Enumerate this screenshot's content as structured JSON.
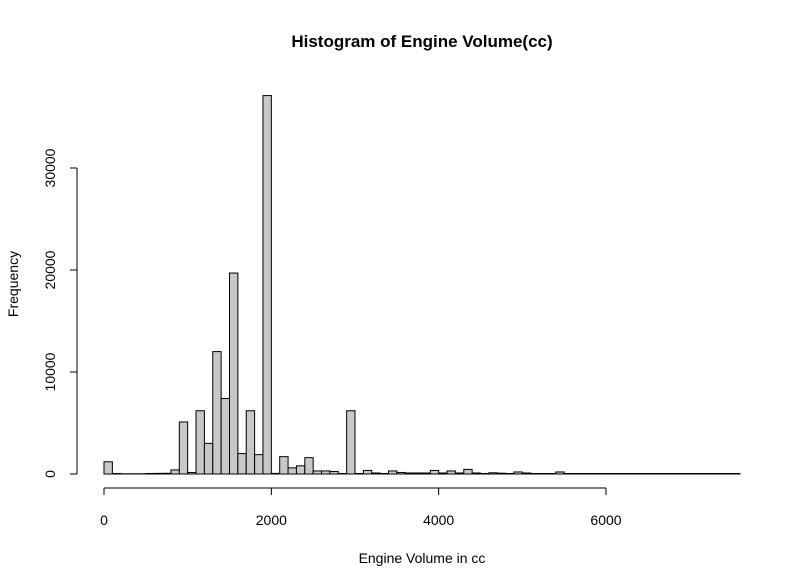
{
  "chart_data": {
    "type": "bar",
    "title": "Histogram of Engine Volume(cc)",
    "xlabel": "Engine Volume in cc",
    "ylabel": "Frequency",
    "bin_width": 100,
    "bins_start": [
      0,
      100,
      200,
      300,
      400,
      500,
      600,
      700,
      800,
      900,
      1000,
      1100,
      1200,
      1300,
      1400,
      1500,
      1600,
      1700,
      1800,
      1900,
      2000,
      2100,
      2200,
      2300,
      2400,
      2500,
      2600,
      2700,
      2800,
      2900,
      3000,
      3100,
      3200,
      3300,
      3400,
      3500,
      3600,
      3700,
      3800,
      3900,
      4000,
      4100,
      4200,
      4300,
      4400,
      4500,
      4600,
      4700,
      4800,
      4900,
      5000,
      5100,
      5200,
      5300,
      5400,
      5500,
      5600,
      5700,
      5800,
      5900,
      6000,
      6100,
      6200,
      6300,
      6400,
      6500,
      6600,
      6700,
      6800,
      6900,
      7000,
      7100,
      7200,
      7300,
      7400,
      7500
    ],
    "values": [
      1200,
      50,
      20,
      20,
      20,
      50,
      60,
      70,
      400,
      5100,
      150,
      6200,
      3000,
      12000,
      7400,
      19700,
      2000,
      6200,
      1900,
      37100,
      60,
      1700,
      600,
      800,
      1600,
      300,
      300,
      250,
      50,
      6200,
      50,
      350,
      100,
      50,
      300,
      150,
      100,
      100,
      100,
      350,
      100,
      300,
      100,
      450,
      100,
      50,
      120,
      80,
      50,
      200,
      100,
      50,
      50,
      50,
      200,
      50,
      50,
      50,
      50,
      50,
      50,
      50,
      50,
      50,
      50,
      50,
      50,
      50,
      50,
      50,
      50,
      50,
      50,
      50,
      50,
      50
    ],
    "xlim": [
      0,
      7600
    ],
    "ylim": [
      0,
      37100
    ],
    "xticks": [
      0,
      2000,
      4000,
      6000
    ],
    "yticks": [
      0,
      10000,
      20000,
      30000
    ],
    "grid": false,
    "legend": "none",
    "colors": {
      "bar_fill": "#c8c8c8",
      "bar_stroke": "#000000"
    }
  }
}
